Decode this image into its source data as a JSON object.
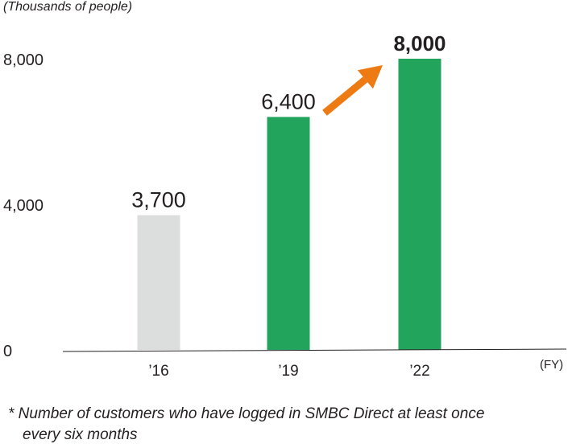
{
  "chart_data": {
    "type": "bar",
    "unit_label": "(Thousands of people)",
    "categories": [
      "’16",
      "’19",
      "’22"
    ],
    "values": [
      3700,
      6400,
      8000
    ],
    "value_labels": [
      "3,700",
      "6,400",
      "8,000"
    ],
    "bar_colors": [
      "#dcdddd",
      "#22a45d",
      "#22a45d"
    ],
    "highlight_index": 2,
    "y_ticks": [
      {
        "value": 0,
        "label": "0"
      },
      {
        "value": 4000,
        "label": "4,000"
      },
      {
        "value": 8000,
        "label": "8,000"
      }
    ],
    "ylim": [
      0,
      8000
    ],
    "x_unit_label": "(FY)",
    "arrow": {
      "from_index": 1,
      "to_index": 2,
      "color": "#ee7a14"
    },
    "grid": false,
    "legend": "none"
  },
  "footnote": {
    "line1": "* Number of customers who have logged in SMBC Direct at least once",
    "line2": "every six months"
  }
}
